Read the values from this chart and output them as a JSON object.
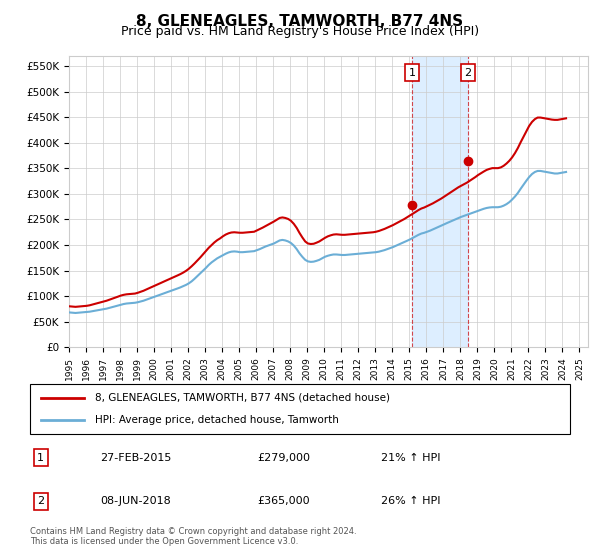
{
  "title": "8, GLENEAGLES, TAMWORTH, B77 4NS",
  "subtitle": "Price paid vs. HM Land Registry's House Price Index (HPI)",
  "title_fontsize": 11,
  "subtitle_fontsize": 9,
  "ylabel_ticks": [
    "£0",
    "£50K",
    "£100K",
    "£150K",
    "£200K",
    "£250K",
    "£300K",
    "£350K",
    "£400K",
    "£450K",
    "£500K",
    "£550K"
  ],
  "ytick_vals": [
    0,
    50000,
    100000,
    150000,
    200000,
    250000,
    300000,
    350000,
    400000,
    450000,
    500000,
    550000
  ],
  "ylim": [
    0,
    570000
  ],
  "xlim_start": 1995.0,
  "xlim_end": 2025.5,
  "sale1_x": 2015.15,
  "sale1_y": 279000,
  "sale2_x": 2018.44,
  "sale2_y": 365000,
  "sale1_label": "1",
  "sale2_label": "2",
  "bg_shade_x1": 2015.15,
  "bg_shade_x2": 2018.44,
  "hpi_line_color": "#6baed6",
  "price_line_color": "#cc0000",
  "bg_shade_color": "#ddeeff",
  "grid_color": "#cccccc",
  "legend_line1": "8, GLENEAGLES, TAMWORTH, B77 4NS (detached house)",
  "legend_line2": "HPI: Average price, detached house, Tamworth",
  "table_row1": [
    "1",
    "27-FEB-2015",
    "£279,000",
    "21% ↑ HPI"
  ],
  "table_row2": [
    "2",
    "08-JUN-2018",
    "£365,000",
    "26% ↑ HPI"
  ],
  "footer": "Contains HM Land Registry data © Crown copyright and database right 2024.\nThis data is licensed under the Open Government Licence v3.0.",
  "hpi_data": {
    "years": [
      1995.04,
      1995.21,
      1995.38,
      1995.54,
      1995.71,
      1995.88,
      1996.04,
      1996.21,
      1996.38,
      1996.54,
      1996.71,
      1996.88,
      1997.04,
      1997.21,
      1997.38,
      1997.54,
      1997.71,
      1997.88,
      1998.04,
      1998.21,
      1998.38,
      1998.54,
      1998.71,
      1998.88,
      1999.04,
      1999.21,
      1999.38,
      1999.54,
      1999.71,
      1999.88,
      2000.04,
      2000.21,
      2000.38,
      2000.54,
      2000.71,
      2000.88,
      2001.04,
      2001.21,
      2001.38,
      2001.54,
      2001.71,
      2001.88,
      2002.04,
      2002.21,
      2002.38,
      2002.54,
      2002.71,
      2002.88,
      2003.04,
      2003.21,
      2003.38,
      2003.54,
      2003.71,
      2003.88,
      2004.04,
      2004.21,
      2004.38,
      2004.54,
      2004.71,
      2004.88,
      2005.04,
      2005.21,
      2005.38,
      2005.54,
      2005.71,
      2005.88,
      2006.04,
      2006.21,
      2006.38,
      2006.54,
      2006.71,
      2006.88,
      2007.04,
      2007.21,
      2007.38,
      2007.54,
      2007.71,
      2007.88,
      2008.04,
      2008.21,
      2008.38,
      2008.54,
      2008.71,
      2008.88,
      2009.04,
      2009.21,
      2009.38,
      2009.54,
      2009.71,
      2009.88,
      2010.04,
      2010.21,
      2010.38,
      2010.54,
      2010.71,
      2010.88,
      2011.04,
      2011.21,
      2011.38,
      2011.54,
      2011.71,
      2011.88,
      2012.04,
      2012.21,
      2012.38,
      2012.54,
      2012.71,
      2012.88,
      2013.04,
      2013.21,
      2013.38,
      2013.54,
      2013.71,
      2013.88,
      2014.04,
      2014.21,
      2014.38,
      2014.54,
      2014.71,
      2014.88,
      2015.04,
      2015.21,
      2015.38,
      2015.54,
      2015.71,
      2015.88,
      2016.04,
      2016.21,
      2016.38,
      2016.54,
      2016.71,
      2016.88,
      2017.04,
      2017.21,
      2017.38,
      2017.54,
      2017.71,
      2017.88,
      2018.04,
      2018.21,
      2018.38,
      2018.54,
      2018.71,
      2018.88,
      2019.04,
      2019.21,
      2019.38,
      2019.54,
      2019.71,
      2019.88,
      2020.04,
      2020.21,
      2020.38,
      2020.54,
      2020.71,
      2020.88,
      2021.04,
      2021.21,
      2021.38,
      2021.54,
      2021.71,
      2021.88,
      2022.04,
      2022.21,
      2022.38,
      2022.54,
      2022.71,
      2022.88,
      2023.04,
      2023.21,
      2023.38,
      2023.54,
      2023.71,
      2023.88,
      2024.04,
      2024.21
    ],
    "values": [
      68000,
      67500,
      67000,
      67500,
      68000,
      68500,
      69000,
      69500,
      70500,
      71500,
      72500,
      73500,
      74500,
      75500,
      77000,
      78500,
      80000,
      81500,
      83000,
      84500,
      85500,
      86000,
      86500,
      87000,
      88000,
      89500,
      91000,
      93000,
      95000,
      97000,
      99000,
      101000,
      103000,
      105000,
      107000,
      109000,
      111000,
      113000,
      115000,
      117000,
      119500,
      122000,
      125000,
      129000,
      134000,
      139000,
      144500,
      150000,
      155000,
      161000,
      166000,
      170000,
      174000,
      177000,
      180000,
      183000,
      185500,
      187000,
      187500,
      187000,
      186000,
      186000,
      186500,
      187000,
      187500,
      188000,
      190000,
      192000,
      194500,
      197000,
      199000,
      201000,
      203000,
      206000,
      209000,
      210000,
      209000,
      207000,
      204000,
      199000,
      192000,
      184000,
      177000,
      171000,
      168000,
      167000,
      167500,
      169000,
      171000,
      174000,
      177000,
      179000,
      180500,
      181500,
      181500,
      181000,
      180500,
      180500,
      181000,
      181500,
      182000,
      182500,
      183000,
      183500,
      184000,
      184500,
      185000,
      185500,
      186000,
      187000,
      188500,
      190000,
      192000,
      194000,
      196000,
      198500,
      201000,
      203500,
      206000,
      208500,
      211000,
      214000,
      217000,
      220000,
      222500,
      224000,
      226000,
      228000,
      230500,
      233000,
      235500,
      238000,
      240500,
      243000,
      245500,
      248000,
      250500,
      253000,
      255000,
      257000,
      259000,
      261000,
      263000,
      265000,
      267000,
      269000,
      271000,
      272500,
      273500,
      274000,
      274000,
      274000,
      275000,
      277000,
      280000,
      284000,
      289000,
      295000,
      302000,
      310000,
      318000,
      326000,
      333000,
      339000,
      343000,
      345000,
      345000,
      344000,
      343000,
      342000,
      341000,
      340000,
      340000,
      341000,
      342000,
      343000
    ]
  },
  "price_data": {
    "years": [
      1995.04,
      1995.21,
      1995.38,
      1995.54,
      1995.71,
      1995.88,
      1996.04,
      1996.21,
      1996.38,
      1996.54,
      1996.71,
      1996.88,
      1997.04,
      1997.21,
      1997.38,
      1997.54,
      1997.71,
      1997.88,
      1998.04,
      1998.21,
      1998.38,
      1998.54,
      1998.71,
      1998.88,
      1999.04,
      1999.21,
      1999.38,
      1999.54,
      1999.71,
      1999.88,
      2000.04,
      2000.21,
      2000.38,
      2000.54,
      2000.71,
      2000.88,
      2001.04,
      2001.21,
      2001.38,
      2001.54,
      2001.71,
      2001.88,
      2002.04,
      2002.21,
      2002.38,
      2002.54,
      2002.71,
      2002.88,
      2003.04,
      2003.21,
      2003.38,
      2003.54,
      2003.71,
      2003.88,
      2004.04,
      2004.21,
      2004.38,
      2004.54,
      2004.71,
      2004.88,
      2005.04,
      2005.21,
      2005.38,
      2005.54,
      2005.71,
      2005.88,
      2006.04,
      2006.21,
      2006.38,
      2006.54,
      2006.71,
      2006.88,
      2007.04,
      2007.21,
      2007.38,
      2007.54,
      2007.71,
      2007.88,
      2008.04,
      2008.21,
      2008.38,
      2008.54,
      2008.71,
      2008.88,
      2009.04,
      2009.21,
      2009.38,
      2009.54,
      2009.71,
      2009.88,
      2010.04,
      2010.21,
      2010.38,
      2010.54,
      2010.71,
      2010.88,
      2011.04,
      2011.21,
      2011.38,
      2011.54,
      2011.71,
      2011.88,
      2012.04,
      2012.21,
      2012.38,
      2012.54,
      2012.71,
      2012.88,
      2013.04,
      2013.21,
      2013.38,
      2013.54,
      2013.71,
      2013.88,
      2014.04,
      2014.21,
      2014.38,
      2014.54,
      2014.71,
      2014.88,
      2015.04,
      2015.21,
      2015.38,
      2015.54,
      2015.71,
      2015.88,
      2016.04,
      2016.21,
      2016.38,
      2016.54,
      2016.71,
      2016.88,
      2017.04,
      2017.21,
      2017.38,
      2017.54,
      2017.71,
      2017.88,
      2018.04,
      2018.21,
      2018.38,
      2018.54,
      2018.71,
      2018.88,
      2019.04,
      2019.21,
      2019.38,
      2019.54,
      2019.71,
      2019.88,
      2020.04,
      2020.21,
      2020.38,
      2020.54,
      2020.71,
      2020.88,
      2021.04,
      2021.21,
      2021.38,
      2021.54,
      2021.71,
      2021.88,
      2022.04,
      2022.21,
      2022.38,
      2022.54,
      2022.71,
      2022.88,
      2023.04,
      2023.21,
      2023.38,
      2023.54,
      2023.71,
      2023.88,
      2024.04,
      2024.21
    ],
    "values": [
      80000,
      79500,
      79000,
      79500,
      80000,
      80500,
      81000,
      82000,
      83500,
      85000,
      86500,
      88000,
      89500,
      91000,
      93000,
      95000,
      97000,
      99000,
      101000,
      102500,
      103500,
      104000,
      104500,
      105000,
      106500,
      108500,
      110500,
      113000,
      115500,
      118000,
      120500,
      123000,
      125500,
      128000,
      130500,
      133000,
      135500,
      138000,
      140500,
      143000,
      146000,
      149500,
      153500,
      158500,
      164000,
      169500,
      175500,
      182000,
      188000,
      194500,
      200000,
      205000,
      209500,
      213000,
      217000,
      220500,
      223000,
      224500,
      225000,
      224500,
      224000,
      224000,
      224500,
      225000,
      225500,
      226000,
      228500,
      231000,
      234000,
      237000,
      240000,
      243000,
      246000,
      249500,
      253000,
      254000,
      253000,
      251000,
      247500,
      241500,
      233500,
      224000,
      215000,
      207000,
      203000,
      202000,
      202500,
      204500,
      207000,
      210500,
      214000,
      217000,
      219000,
      220500,
      221000,
      220500,
      220000,
      220000,
      220500,
      221000,
      221500,
      222000,
      222500,
      223000,
      223500,
      224000,
      224500,
      225000,
      226000,
      227500,
      229500,
      231500,
      234000,
      236500,
      239000,
      242000,
      245000,
      248000,
      251000,
      254500,
      258000,
      261500,
      265000,
      268500,
      271500,
      273500,
      276000,
      278500,
      281500,
      284500,
      287500,
      291000,
      294500,
      298000,
      302000,
      305500,
      309000,
      313000,
      316000,
      319000,
      322000,
      325500,
      329000,
      333000,
      337000,
      340500,
      344000,
      347000,
      349000,
      350500,
      350500,
      350500,
      352000,
      355000,
      359500,
      365000,
      371500,
      380000,
      390000,
      401000,
      412000,
      423000,
      433000,
      441000,
      446500,
      449500,
      449500,
      448500,
      447500,
      446500,
      445500,
      445000,
      445000,
      446000,
      447000,
      448000
    ]
  }
}
